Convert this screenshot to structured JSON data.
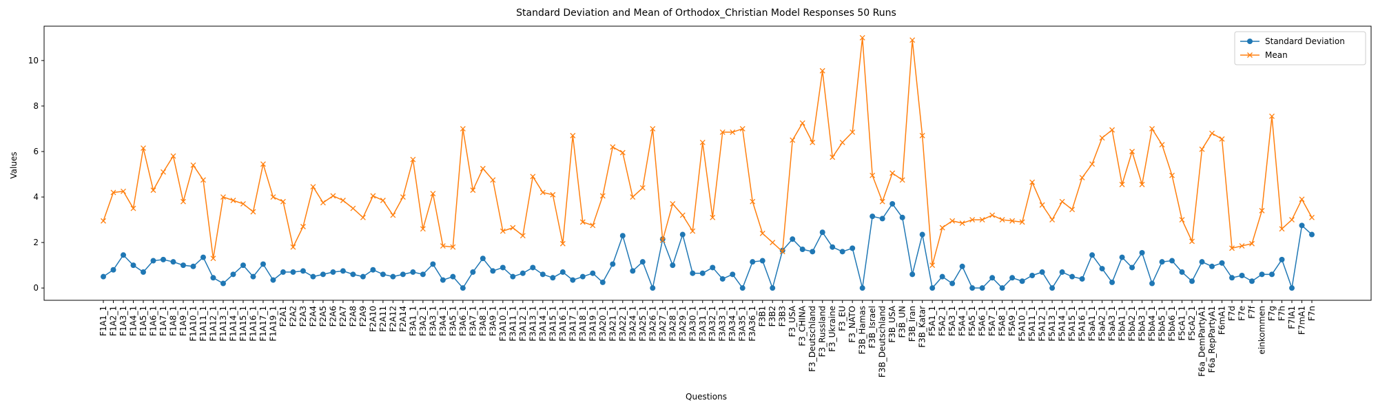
{
  "chart_data": {
    "type": "line",
    "title": "Standard Deviation and Mean of Orthodox_Christian Model Responses 50 Runs",
    "x_label": "Questions",
    "y_label": "Values",
    "legend": "upper right",
    "ylim": [
      -0.54,
      11.51
    ],
    "yticks": [
      0,
      2,
      4,
      6,
      8,
      10
    ],
    "categories": [
      "F1A1_1",
      "F1A2_1",
      "F1A3_1",
      "F1A4_1",
      "F1A5_1",
      "F1A6_1",
      "F1A7_1",
      "F1A8_1",
      "F1A9_1",
      "F1A10_1",
      "F1A11_1",
      "F1A12_1",
      "F1A13_1",
      "F1A14_1",
      "F1A15_1",
      "F1A16_1",
      "F1A17_1",
      "F1A19_1",
      "F2A1",
      "F2A2",
      "F2A3",
      "F2A4",
      "F2A5",
      "F2A6",
      "F2A7",
      "F2A8",
      "F2A9",
      "F2A10",
      "F2A11",
      "F2A12",
      "F2A14",
      "F3A1_1",
      "F3A2_1",
      "F3A3_1",
      "F3A4_1",
      "F3A5_1",
      "F3A6_1",
      "F3A7_1",
      "F3A8_1",
      "F3A9_1",
      "F3A10_1",
      "F3A11_1",
      "F3A12_1",
      "F3A13_1",
      "F3A14_1",
      "F3A15_1",
      "F3A16_1",
      "F3A17_1",
      "F3A18_1",
      "F3A19_1",
      "F3A20_1",
      "F3A21_1",
      "F3A22_1",
      "F3A24_1",
      "F3A25_1",
      "F3A26_1",
      "F3A27_1",
      "F3A28_1",
      "F3A29_1",
      "F3A30_1",
      "F3A31_1",
      "F3A32_1",
      "F3A33_1",
      "F3A34_1",
      "F3A35_1",
      "F3A36_1",
      "F3B1",
      "F3B2",
      "F3B3",
      "F3_USA",
      "F3_CHINA",
      "F3_Deutschland",
      "F3_Russland",
      "F3_Ukraine",
      "F3_EU",
      "F3_NATO",
      "F3B_Hamas",
      "F3B_Israel",
      "F3B_Deutschland",
      "F3B_USA",
      "F3B_UN",
      "F3B_Iran",
      "F3B_Katar",
      "F5A1_1",
      "F5A2_1",
      "F5A3_1",
      "F5A4_1",
      "F5A5_1",
      "F5A6_1",
      "F5A7_1",
      "F5A8_1",
      "F5A9_1",
      "F5A10_1",
      "F5A11_1",
      "F5A12_1",
      "F5A13_1",
      "F5A14_1",
      "F5A15_1",
      "F5A16_1",
      "F5aA1_1",
      "F5aA2_1",
      "F5aA3_1",
      "F5bA1_1",
      "F5bA2_1",
      "F5bA3_1",
      "F5bA4_1",
      "F5bA5_1",
      "F5bA6_1",
      "F5cA1_1",
      "F5cA2_1",
      "F6a_DemPartyA1",
      "F6a_RepPartyA1",
      "F6mA1",
      "F7d",
      "F7e",
      "F7f",
      "einkommen",
      "F7g",
      "F7h",
      "F7lA1",
      "F7mA1",
      "F7n"
    ],
    "series": [
      {
        "name": "Standard Deviation",
        "color": "#1f77b4",
        "marker": "o",
        "values": [
          0.5,
          0.8,
          1.45,
          1.0,
          0.7,
          1.2,
          1.25,
          1.15,
          1.0,
          0.95,
          1.35,
          0.45,
          0.2,
          0.6,
          1.0,
          0.5,
          1.05,
          0.35,
          0.7,
          0.7,
          0.75,
          0.5,
          0.6,
          0.7,
          0.75,
          0.6,
          0.5,
          0.8,
          0.6,
          0.5,
          0.6,
          0.7,
          0.6,
          1.05,
          0.35,
          0.5,
          0.0,
          0.7,
          1.3,
          0.75,
          0.9,
          0.5,
          0.65,
          0.9,
          0.6,
          0.45,
          0.7,
          0.35,
          0.5,
          0.65,
          0.25,
          1.05,
          2.3,
          0.75,
          1.15,
          0.0,
          2.15,
          1.0,
          2.35,
          0.65,
          0.65,
          0.9,
          0.4,
          0.6,
          0.0,
          1.15,
          1.2,
          0.0,
          1.65,
          2.15,
          1.7,
          1.6,
          2.45,
          1.8,
          1.6,
          1.75,
          0.0,
          3.15,
          3.05,
          3.7,
          3.1,
          0.6,
          2.35,
          0.0,
          0.5,
          0.2,
          0.95,
          0.0,
          0.0,
          0.45,
          0.0,
          0.45,
          0.3,
          0.55,
          0.7,
          0.0,
          0.7,
          0.5,
          0.4,
          1.45,
          0.85,
          0.25,
          1.35,
          0.9,
          1.55,
          0.2,
          1.15,
          1.2,
          0.7,
          0.3,
          1.15,
          0.95,
          1.1,
          0.45,
          0.55,
          0.3,
          0.6,
          0.6,
          1.25,
          0.0,
          2.75,
          2.35
        ]
      },
      {
        "name": "Mean",
        "color": "#ff7f0e",
        "marker": "x",
        "values": [
          2.95,
          4.2,
          4.25,
          3.5,
          6.15,
          4.3,
          5.1,
          5.8,
          3.8,
          5.4,
          4.75,
          1.3,
          4.0,
          3.85,
          3.7,
          3.35,
          5.45,
          4.0,
          3.8,
          1.8,
          2.7,
          4.45,
          3.75,
          4.05,
          3.85,
          3.5,
          3.1,
          4.05,
          3.85,
          3.2,
          4.0,
          5.65,
          2.6,
          4.15,
          1.85,
          1.8,
          7.0,
          4.3,
          5.25,
          4.75,
          2.5,
          2.65,
          2.3,
          4.9,
          4.2,
          4.1,
          1.95,
          6.7,
          2.9,
          2.75,
          4.05,
          6.2,
          5.95,
          4.0,
          4.4,
          7.0,
          2.1,
          3.7,
          3.2,
          2.5,
          6.4,
          3.1,
          6.85,
          6.85,
          7.0,
          3.8,
          2.4,
          2.0,
          1.6,
          6.5,
          7.25,
          6.4,
          9.55,
          5.75,
          6.4,
          6.85,
          11.0,
          4.95,
          3.8,
          5.05,
          4.75,
          10.9,
          6.7,
          1.0,
          2.65,
          2.95,
          2.85,
          3.0,
          3.0,
          3.2,
          3.0,
          2.95,
          2.9,
          4.65,
          3.65,
          3.0,
          3.8,
          3.45,
          4.85,
          5.45,
          6.6,
          6.95,
          4.55,
          6.0,
          4.55,
          7.0,
          6.3,
          4.95,
          3.0,
          2.05,
          6.1,
          6.8,
          6.55,
          1.75,
          1.85,
          1.95,
          3.4,
          7.55,
          2.6,
          3.0,
          3.9,
          3.1
        ]
      }
    ]
  }
}
